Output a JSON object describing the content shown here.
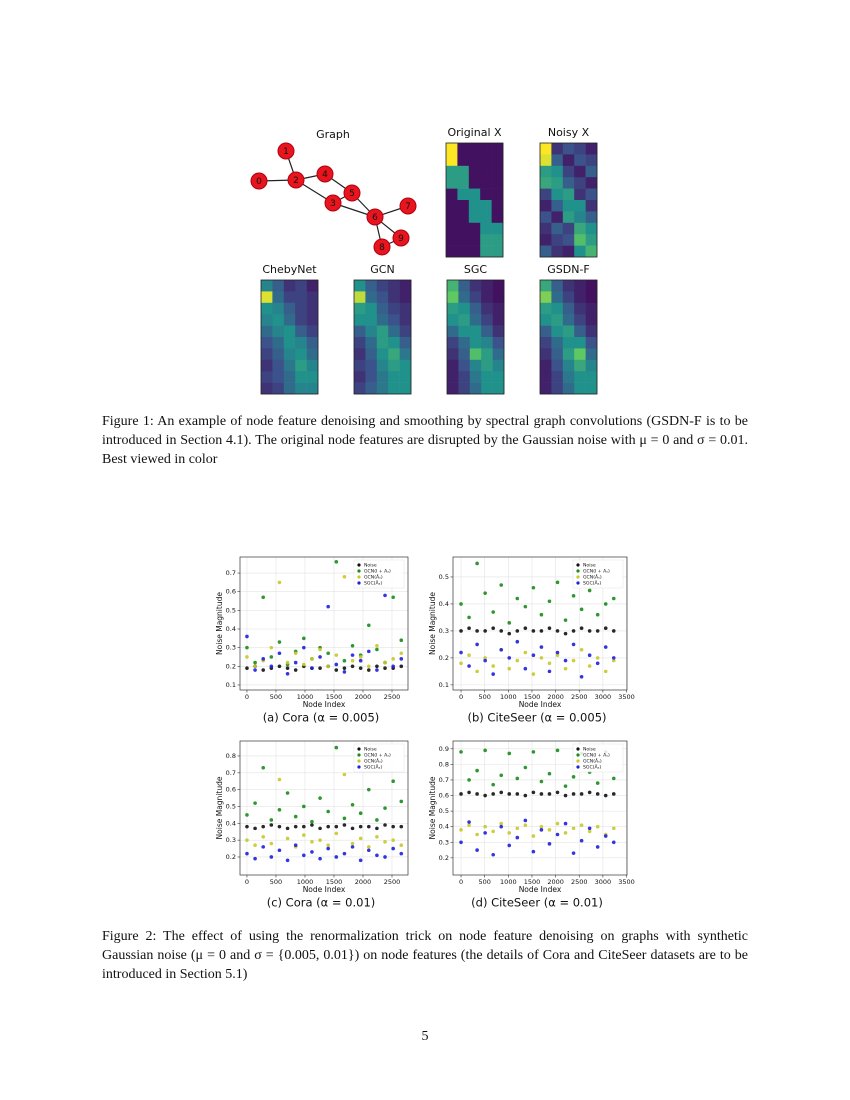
{
  "figure1": {
    "graph": {
      "title": "Graph",
      "nodes": [
        "0",
        "1",
        "2",
        "3",
        "4",
        "5",
        "6",
        "7",
        "8",
        "9"
      ],
      "node_color": "#e8141e"
    },
    "colormap": "viridis",
    "heatmaps": [
      {
        "title": "Original X",
        "values": [
          [
            1,
            0.05,
            0.05,
            0.05,
            0.05
          ],
          [
            1,
            0.05,
            0.05,
            0.05,
            0.05
          ],
          [
            0.55,
            0.55,
            0.05,
            0.05,
            0.05
          ],
          [
            0.55,
            0.55,
            0.05,
            0.05,
            0.05
          ],
          [
            0.05,
            0.5,
            0.5,
            0.05,
            0.05
          ],
          [
            0.05,
            0.05,
            0.5,
            0.5,
            0.05
          ],
          [
            0.05,
            0.05,
            0.5,
            0.5,
            0.05
          ],
          [
            0.05,
            0.05,
            0.05,
            0.5,
            0.5
          ],
          [
            0.05,
            0.05,
            0.05,
            0.55,
            0.55
          ],
          [
            0.05,
            0.05,
            0.05,
            0.55,
            0.55
          ]
        ]
      },
      {
        "title": "Noisy X",
        "values": [
          [
            1,
            0.15,
            0.25,
            0.2,
            0.1
          ],
          [
            0.95,
            0.3,
            0.1,
            0.25,
            0.2
          ],
          [
            0.55,
            0.5,
            0.2,
            0.1,
            0.3
          ],
          [
            0.6,
            0.55,
            0.3,
            0.2,
            0.1
          ],
          [
            0.2,
            0.5,
            0.55,
            0.15,
            0.25
          ],
          [
            0.1,
            0.3,
            0.5,
            0.5,
            0.15
          ],
          [
            0.25,
            0.1,
            0.55,
            0.45,
            0.3
          ],
          [
            0.15,
            0.3,
            0.2,
            0.6,
            0.5
          ],
          [
            0.1,
            0.2,
            0.25,
            0.7,
            0.55
          ],
          [
            0.3,
            0.15,
            0.1,
            0.5,
            0.65
          ]
        ]
      },
      {
        "title": "ChebyNet",
        "values": [
          [
            0.45,
            0.3,
            0.15,
            0.2,
            0.1
          ],
          [
            0.95,
            0.35,
            0.2,
            0.2,
            0.15
          ],
          [
            0.5,
            0.45,
            0.3,
            0.2,
            0.15
          ],
          [
            0.45,
            0.5,
            0.35,
            0.2,
            0.15
          ],
          [
            0.35,
            0.45,
            0.5,
            0.3,
            0.2
          ],
          [
            0.25,
            0.35,
            0.5,
            0.45,
            0.3
          ],
          [
            0.2,
            0.3,
            0.45,
            0.5,
            0.35
          ],
          [
            0.15,
            0.25,
            0.4,
            0.55,
            0.45
          ],
          [
            0.2,
            0.25,
            0.35,
            0.5,
            0.5
          ],
          [
            0.15,
            0.2,
            0.35,
            0.45,
            0.45
          ]
        ]
      },
      {
        "title": "GCN",
        "values": [
          [
            0.5,
            0.3,
            0.2,
            0.15,
            0.1
          ],
          [
            0.9,
            0.35,
            0.25,
            0.15,
            0.1
          ],
          [
            0.55,
            0.5,
            0.3,
            0.2,
            0.15
          ],
          [
            0.5,
            0.5,
            0.35,
            0.25,
            0.15
          ],
          [
            0.3,
            0.45,
            0.55,
            0.35,
            0.2
          ],
          [
            0.2,
            0.35,
            0.55,
            0.5,
            0.3
          ],
          [
            0.15,
            0.3,
            0.5,
            0.6,
            0.4
          ],
          [
            0.2,
            0.25,
            0.45,
            0.55,
            0.5
          ],
          [
            0.15,
            0.25,
            0.4,
            0.5,
            0.5
          ],
          [
            0.2,
            0.3,
            0.4,
            0.5,
            0.5
          ]
        ]
      },
      {
        "title": "SGC",
        "values": [
          [
            0.65,
            0.3,
            0.15,
            0.1,
            0.05
          ],
          [
            0.75,
            0.35,
            0.2,
            0.1,
            0.05
          ],
          [
            0.55,
            0.5,
            0.3,
            0.15,
            0.1
          ],
          [
            0.5,
            0.55,
            0.35,
            0.2,
            0.1
          ],
          [
            0.35,
            0.5,
            0.5,
            0.3,
            0.15
          ],
          [
            0.2,
            0.35,
            0.5,
            0.45,
            0.25
          ],
          [
            0.15,
            0.3,
            0.7,
            0.55,
            0.35
          ],
          [
            0.1,
            0.25,
            0.45,
            0.55,
            0.45
          ],
          [
            0.1,
            0.2,
            0.4,
            0.5,
            0.5
          ],
          [
            0.1,
            0.2,
            0.35,
            0.5,
            0.5
          ]
        ]
      },
      {
        "title": "GSDN-F",
        "values": [
          [
            0.6,
            0.3,
            0.15,
            0.1,
            0.05
          ],
          [
            0.8,
            0.35,
            0.2,
            0.1,
            0.05
          ],
          [
            0.55,
            0.5,
            0.3,
            0.15,
            0.1
          ],
          [
            0.5,
            0.55,
            0.35,
            0.2,
            0.1
          ],
          [
            0.3,
            0.5,
            0.55,
            0.3,
            0.15
          ],
          [
            0.2,
            0.35,
            0.5,
            0.5,
            0.25
          ],
          [
            0.15,
            0.3,
            0.55,
            0.75,
            0.35
          ],
          [
            0.1,
            0.25,
            0.45,
            0.6,
            0.45
          ],
          [
            0.1,
            0.2,
            0.4,
            0.5,
            0.5
          ],
          [
            0.1,
            0.2,
            0.35,
            0.5,
            0.5
          ]
        ]
      }
    ],
    "caption": "Figure 1: An example of node feature denoising and smoothing by spectral graph convolutions (GSDN-F is to be introduced in Section 4.1). The original node features are disrupted by the Gaussian noise with μ = 0 and σ = 0.01. Best viewed in color"
  },
  "chart_data": [
    {
      "type": "scatter",
      "caption": "(a) Cora (α = 0.005)",
      "xlabel": "Node Index",
      "ylabel": "Noise Magnitude",
      "grid": true,
      "legend": "upper right",
      "x": [
        0,
        140,
        280,
        420,
        560,
        700,
        840,
        980,
        1120,
        1260,
        1400,
        1540,
        1680,
        1820,
        1960,
        2100,
        2240,
        2380,
        2520,
        2660
      ],
      "xlim": [
        -120,
        2776
      ],
      "xticks": [
        0,
        500,
        1000,
        1500,
        2000,
        2500
      ],
      "ylim": [
        0.073,
        0.786
      ],
      "yticks": [
        0.1,
        0.2,
        0.3,
        0.4,
        0.5,
        0.6,
        0.7
      ],
      "series": [
        {
          "name": "Noise",
          "color": "#111111",
          "values": [
            0.19,
            0.2,
            0.18,
            0.19,
            0.2,
            0.19,
            0.18,
            0.2,
            0.19,
            0.19,
            0.2,
            0.18,
            0.19,
            0.2,
            0.19,
            0.18,
            0.2,
            0.19,
            0.19,
            0.2
          ]
        },
        {
          "name": "GCN(I + Aₛ)",
          "color": "#1a8c1a",
          "values": [
            0.3,
            0.22,
            0.57,
            0.25,
            0.33,
            0.21,
            0.28,
            0.35,
            0.24,
            0.3,
            0.27,
            0.76,
            0.23,
            0.31,
            0.26,
            0.42,
            0.29,
            0.22,
            0.57,
            0.34
          ]
        },
        {
          "name": "GCN(Âₛ)",
          "color": "#c8c82a",
          "values": [
            0.25,
            0.2,
            0.23,
            0.3,
            0.65,
            0.22,
            0.27,
            0.21,
            0.24,
            0.29,
            0.2,
            0.26,
            0.68,
            0.23,
            0.25,
            0.2,
            0.31,
            0.22,
            0.24,
            0.27
          ]
        },
        {
          "name": "SGC(Âₛ)",
          "color": "#1f1fdd",
          "values": [
            0.36,
            0.18,
            0.24,
            0.2,
            0.27,
            0.16,
            0.22,
            0.3,
            0.19,
            0.25,
            0.52,
            0.21,
            0.17,
            0.26,
            0.23,
            0.28,
            0.18,
            0.58,
            0.2,
            0.24
          ]
        }
      ]
    },
    {
      "type": "scatter",
      "caption": "(b) CiteSeer (α = 0.005)",
      "xlabel": "Node Index",
      "ylabel": "Noise Magnitude",
      "grid": true,
      "legend": "upper right",
      "x": [
        0,
        170,
        340,
        510,
        680,
        850,
        1020,
        1190,
        1360,
        1530,
        1700,
        1870,
        2040,
        2210,
        2380,
        2550,
        2720,
        2890,
        3060,
        3230
      ],
      "xlim": [
        -170,
        3510
      ],
      "xticks": [
        0,
        500,
        1000,
        1500,
        2000,
        2500,
        3000,
        3500
      ],
      "ylim": [
        0.081,
        0.574
      ],
      "yticks": [
        0.1,
        0.2,
        0.3,
        0.4,
        0.5
      ],
      "series": [
        {
          "name": "Noise",
          "color": "#111111",
          "values": [
            0.3,
            0.31,
            0.3,
            0.3,
            0.31,
            0.3,
            0.29,
            0.3,
            0.31,
            0.3,
            0.3,
            0.31,
            0.3,
            0.29,
            0.3,
            0.31,
            0.3,
            0.3,
            0.31,
            0.3
          ]
        },
        {
          "name": "GCN(I + Aₛ)",
          "color": "#1a8c1a",
          "values": [
            0.4,
            0.35,
            0.55,
            0.44,
            0.37,
            0.47,
            0.33,
            0.42,
            0.39,
            0.46,
            0.36,
            0.41,
            0.48,
            0.34,
            0.43,
            0.38,
            0.45,
            0.36,
            0.4,
            0.42
          ]
        },
        {
          "name": "GCN(Âₛ)",
          "color": "#c8c82a",
          "values": [
            0.18,
            0.21,
            0.15,
            0.2,
            0.17,
            0.23,
            0.16,
            0.19,
            0.22,
            0.14,
            0.2,
            0.18,
            0.21,
            0.16,
            0.19,
            0.23,
            0.17,
            0.2,
            0.15,
            0.19
          ]
        },
        {
          "name": "SGC(Âₛ)",
          "color": "#1f1fdd",
          "values": [
            0.22,
            0.17,
            0.25,
            0.19,
            0.14,
            0.23,
            0.2,
            0.26,
            0.16,
            0.21,
            0.24,
            0.15,
            0.22,
            0.19,
            0.25,
            0.13,
            0.21,
            0.18,
            0.24,
            0.2
          ]
        }
      ]
    },
    {
      "type": "scatter",
      "caption": "(c) Cora (α = 0.01)",
      "xlabel": "Node Index",
      "ylabel": "Noise Magnitude",
      "grid": true,
      "legend": "upper right",
      "x": [
        0,
        140,
        280,
        420,
        560,
        700,
        840,
        980,
        1120,
        1260,
        1400,
        1540,
        1680,
        1820,
        1960,
        2100,
        2240,
        2380,
        2520,
        2660
      ],
      "xlim": [
        -120,
        2776
      ],
      "xticks": [
        0,
        500,
        1000,
        1500,
        2000,
        2500
      ],
      "ylim": [
        0.093,
        0.889
      ],
      "yticks": [
        0.2,
        0.3,
        0.4,
        0.5,
        0.6,
        0.7,
        0.8
      ],
      "series": [
        {
          "name": "Noise",
          "color": "#111111",
          "values": [
            0.38,
            0.37,
            0.38,
            0.39,
            0.38,
            0.37,
            0.38,
            0.38,
            0.39,
            0.37,
            0.38,
            0.38,
            0.39,
            0.37,
            0.38,
            0.38,
            0.37,
            0.39,
            0.38,
            0.38
          ]
        },
        {
          "name": "GCN(I + Aₛ)",
          "color": "#1a8c1a",
          "values": [
            0.45,
            0.52,
            0.73,
            0.42,
            0.48,
            0.58,
            0.44,
            0.5,
            0.41,
            0.55,
            0.47,
            0.85,
            0.43,
            0.51,
            0.46,
            0.6,
            0.42,
            0.49,
            0.65,
            0.53
          ]
        },
        {
          "name": "GCN(Âₛ)",
          "color": "#c8c82a",
          "values": [
            0.3,
            0.27,
            0.32,
            0.28,
            0.66,
            0.31,
            0.26,
            0.33,
            0.29,
            0.3,
            0.27,
            0.34,
            0.69,
            0.28,
            0.31,
            0.26,
            0.32,
            0.29,
            0.3,
            0.27
          ]
        },
        {
          "name": "SGC(Âₛ)",
          "color": "#1f1fdd",
          "values": [
            0.22,
            0.19,
            0.26,
            0.2,
            0.24,
            0.18,
            0.27,
            0.21,
            0.23,
            0.19,
            0.25,
            0.2,
            0.22,
            0.26,
            0.18,
            0.24,
            0.21,
            0.2,
            0.25,
            0.22
          ]
        }
      ]
    },
    {
      "type": "scatter",
      "caption": "(d) CiteSeer (α = 0.01)",
      "xlabel": "Node Index",
      "ylabel": "Noise Magnitude",
      "grid": true,
      "legend": "upper right",
      "x": [
        0,
        170,
        340,
        510,
        680,
        850,
        1020,
        1190,
        1360,
        1530,
        1700,
        1870,
        2040,
        2210,
        2380,
        2550,
        2720,
        2890,
        3060,
        3230
      ],
      "xlim": [
        -170,
        3510
      ],
      "xticks": [
        0,
        500,
        1000,
        1500,
        2000,
        2500,
        3000,
        3500
      ],
      "ylim": [
        0.09,
        0.95
      ],
      "yticks": [
        0.2,
        0.3,
        0.4,
        0.5,
        0.6,
        0.7,
        0.8,
        0.9
      ],
      "series": [
        {
          "name": "Noise",
          "color": "#111111",
          "values": [
            0.61,
            0.62,
            0.61,
            0.6,
            0.61,
            0.62,
            0.61,
            0.61,
            0.6,
            0.62,
            0.61,
            0.61,
            0.62,
            0.6,
            0.61,
            0.61,
            0.62,
            0.61,
            0.6,
            0.61
          ]
        },
        {
          "name": "GCN(I + Aₛ)",
          "color": "#1a8c1a",
          "values": [
            0.88,
            0.7,
            0.76,
            0.89,
            0.67,
            0.73,
            0.87,
            0.71,
            0.78,
            0.88,
            0.69,
            0.74,
            0.89,
            0.66,
            0.72,
            0.87,
            0.75,
            0.68,
            0.88,
            0.71
          ]
        },
        {
          "name": "GCN(Âₛ)",
          "color": "#c8c82a",
          "values": [
            0.38,
            0.41,
            0.35,
            0.4,
            0.37,
            0.42,
            0.36,
            0.39,
            0.41,
            0.34,
            0.4,
            0.38,
            0.42,
            0.36,
            0.39,
            0.41,
            0.37,
            0.4,
            0.35,
            0.39
          ]
        },
        {
          "name": "SGC(Âₛ)",
          "color": "#1f1fdd",
          "values": [
            0.3,
            0.43,
            0.25,
            0.36,
            0.22,
            0.4,
            0.28,
            0.33,
            0.44,
            0.24,
            0.38,
            0.29,
            0.35,
            0.42,
            0.23,
            0.31,
            0.39,
            0.27,
            0.34,
            0.3
          ]
        }
      ]
    }
  ],
  "figure2": {
    "caption": "Figure 2: The effect of using the renormalization trick on node feature denoising on graphs with synthetic Gaussian noise (μ = 0 and σ = {0.005, 0.01}) on node features (the details of Cora and CiteSeer datasets are to be introduced in Section 5.1)"
  },
  "page_number": "5"
}
